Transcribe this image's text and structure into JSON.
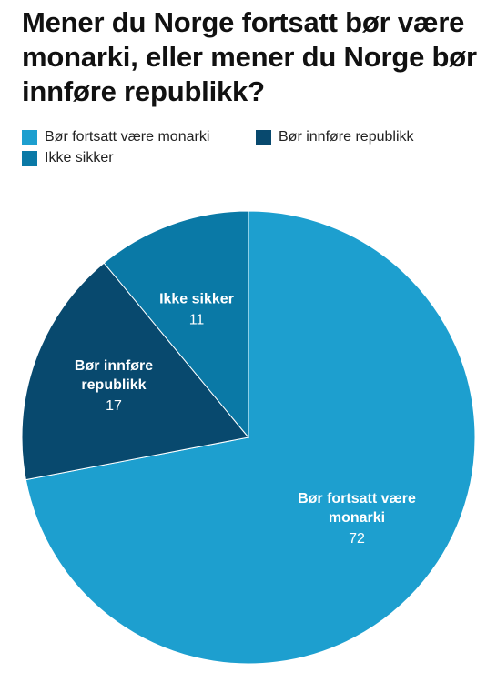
{
  "title": "Mener du Norge fortsatt bør være monarki, eller mener du Norge bør innføre republikk?",
  "legend": {
    "items": [
      {
        "label": "Bør fortsatt være monarki",
        "color": "#1d9fcf"
      },
      {
        "label": "Bør innføre republikk",
        "color": "#08496e"
      },
      {
        "label": "Ikke sikker",
        "color": "#0a79a6"
      }
    ]
  },
  "chart_data": {
    "type": "pie",
    "title": "Mener du Norge fortsatt bør være monarki, eller mener du Norge bør innføre republikk?",
    "slices": [
      {
        "label": "Bør fortsatt være monarki",
        "label_lines": [
          "Bør fortsatt være",
          "monarki"
        ],
        "value": 72,
        "color": "#1d9fcf"
      },
      {
        "label": "Bør innføre republikk",
        "label_lines": [
          "Bør innføre",
          "republikk"
        ],
        "value": 17,
        "color": "#08496e"
      },
      {
        "label": "Ikke sikker",
        "label_lines": [
          "Ikke sikker"
        ],
        "value": 11,
        "color": "#0a79a6"
      }
    ],
    "start": "12 o'clock",
    "direction": "clockwise",
    "legend_position": "top-left"
  }
}
